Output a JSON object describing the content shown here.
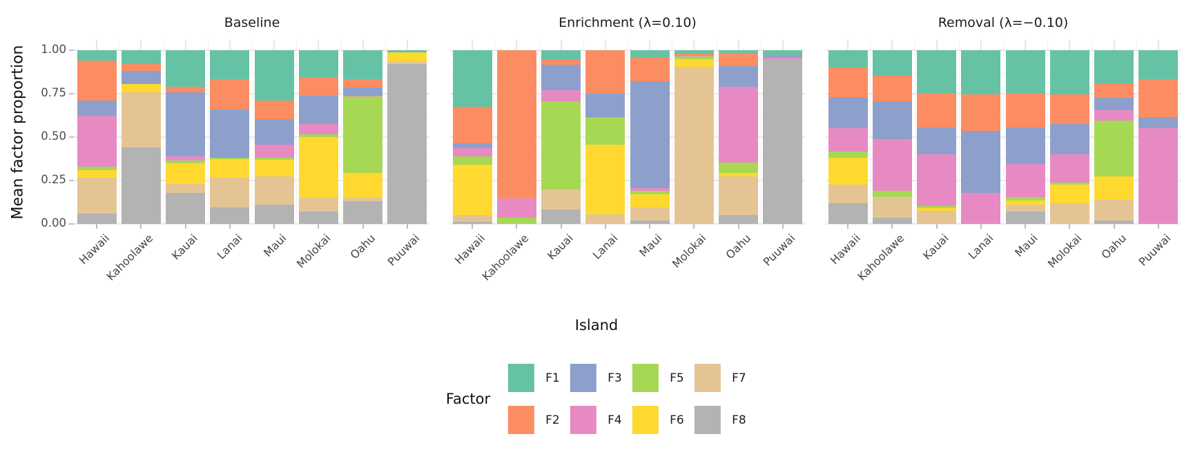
{
  "figure": {
    "y_axis": {
      "title": "Mean factor proportion",
      "ticks": [
        "1.00",
        "0.75",
        "0.50",
        "0.25",
        "0.00"
      ]
    },
    "x_axis": {
      "title": "Island"
    },
    "legend": {
      "title": "Factor",
      "entries": [
        {
          "label": "F1",
          "color": "#66c2a5"
        },
        {
          "label": "F2",
          "color": "#fc8d62"
        },
        {
          "label": "F3",
          "color": "#8da0cb"
        },
        {
          "label": "F4",
          "color": "#e78ac3"
        },
        {
          "label": "F5",
          "color": "#a6d854"
        },
        {
          "label": "F6",
          "color": "#ffd92f"
        },
        {
          "label": "F7",
          "color": "#e5c494"
        },
        {
          "label": "F8",
          "color": "#b3b3b3"
        }
      ]
    }
  },
  "chart_data": {
    "type": "bar",
    "stacked": true,
    "normalized": true,
    "title": "",
    "xlabel": "Island",
    "ylabel": "Mean factor proportion",
    "ylim": [
      0,
      1
    ],
    "yticks": [
      0,
      0.25,
      0.5,
      0.75,
      1.0
    ],
    "yticks_minor": [
      0.125,
      0.375,
      0.625,
      0.875
    ],
    "grid": true,
    "legend_position": "bottom",
    "stack_order_bottom_to_top": [
      "F8",
      "F7",
      "F6",
      "F5",
      "F4",
      "F3",
      "F2",
      "F1"
    ],
    "colors": {
      "F1": "#66c2a5",
      "F2": "#fc8d62",
      "F3": "#8da0cb",
      "F4": "#e78ac3",
      "F5": "#a6d854",
      "F6": "#ffd92f",
      "F7": "#e5c494",
      "F8": "#b3b3b3"
    },
    "categories": [
      "Hawaii",
      "Kahoolawe",
      "Kauai",
      "Lanai",
      "Maui",
      "Molokai",
      "Oahu",
      "Puuwai"
    ],
    "facets": [
      {
        "title": "Baseline",
        "series": [
          {
            "name": "F1",
            "values": [
              0.06,
              0.08,
              0.21,
              0.165,
              0.29,
              0.155,
              0.165,
              0.01
            ]
          },
          {
            "name": "F2",
            "values": [
              0.23,
              0.04,
              0.03,
              0.175,
              0.105,
              0.105,
              0.05,
              0.0
            ]
          },
          {
            "name": "F3",
            "values": [
              0.085,
              0.075,
              0.37,
              0.28,
              0.15,
              0.165,
              0.045,
              0.0
            ]
          },
          {
            "name": "F4",
            "values": [
              0.295,
              0.0,
              0.025,
              0.0,
              0.075,
              0.06,
              0.005,
              0.0
            ]
          },
          {
            "name": "F5",
            "values": [
              0.02,
              0.0,
              0.015,
              0.005,
              0.01,
              0.015,
              0.44,
              0.0
            ]
          },
          {
            "name": "F6",
            "values": [
              0.045,
              0.045,
              0.12,
              0.11,
              0.095,
              0.35,
              0.145,
              0.055
            ]
          },
          {
            "name": "F7",
            "values": [
              0.205,
              0.32,
              0.05,
              0.17,
              0.165,
              0.08,
              0.02,
              0.015
            ]
          },
          {
            "name": "F8",
            "values": [
              0.06,
              0.44,
              0.18,
              0.095,
              0.11,
              0.07,
              0.13,
              0.92
            ]
          }
        ]
      },
      {
        "title": "Enrichment (λ=0.10)",
        "series": [
          {
            "name": "F1",
            "values": [
              0.325,
              0.0,
              0.055,
              0.0,
              0.04,
              0.02,
              0.015,
              0.03
            ]
          },
          {
            "name": "F2",
            "values": [
              0.21,
              0.855,
              0.03,
              0.25,
              0.14,
              0.01,
              0.075,
              0.0
            ]
          },
          {
            "name": "F3",
            "values": [
              0.03,
              0.0,
              0.145,
              0.135,
              0.615,
              0.0,
              0.12,
              0.01
            ]
          },
          {
            "name": "F4",
            "values": [
              0.045,
              0.11,
              0.065,
              0.005,
              0.015,
              0.005,
              0.435,
              0.01
            ]
          },
          {
            "name": "F5",
            "values": [
              0.05,
              0.035,
              0.505,
              0.155,
              0.02,
              0.015,
              0.06,
              0.0
            ]
          },
          {
            "name": "F6",
            "values": [
              0.29,
              0.0,
              0.0,
              0.4,
              0.075,
              0.045,
              0.02,
              0.0
            ]
          },
          {
            "name": "F7",
            "values": [
              0.04,
              0.0,
              0.115,
              0.055,
              0.075,
              0.905,
              0.225,
              0.0
            ]
          },
          {
            "name": "F8",
            "values": [
              0.01,
              0.0,
              0.085,
              0.0,
              0.02,
              0.0,
              0.05,
              0.95
            ]
          }
        ]
      },
      {
        "title": "Removal (λ=−0.10)",
        "series": [
          {
            "name": "F1",
            "values": [
              0.1,
              0.145,
              0.245,
              0.255,
              0.245,
              0.255,
              0.19,
              0.165
            ]
          },
          {
            "name": "F2",
            "values": [
              0.17,
              0.15,
              0.2,
              0.21,
              0.2,
              0.17,
              0.085,
              0.22
            ]
          },
          {
            "name": "F3",
            "values": [
              0.18,
              0.215,
              0.155,
              0.355,
              0.21,
              0.175,
              0.07,
              0.065
            ]
          },
          {
            "name": "F4",
            "values": [
              0.135,
              0.3,
              0.295,
              0.18,
              0.19,
              0.16,
              0.06,
              0.55
            ]
          },
          {
            "name": "F5",
            "values": [
              0.035,
              0.035,
              0.015,
              0.0,
              0.02,
              0.015,
              0.32,
              0.0
            ]
          },
          {
            "name": "F6",
            "values": [
              0.155,
              0.005,
              0.015,
              0.0,
              0.025,
              0.105,
              0.135,
              0.0
            ]
          },
          {
            "name": "F7",
            "values": [
              0.105,
              0.115,
              0.075,
              0.0,
              0.04,
              0.12,
              0.12,
              0.0
            ]
          },
          {
            "name": "F8",
            "values": [
              0.12,
              0.035,
              0.0,
              0.0,
              0.07,
              0.0,
              0.02,
              0.0
            ]
          }
        ]
      }
    ]
  }
}
